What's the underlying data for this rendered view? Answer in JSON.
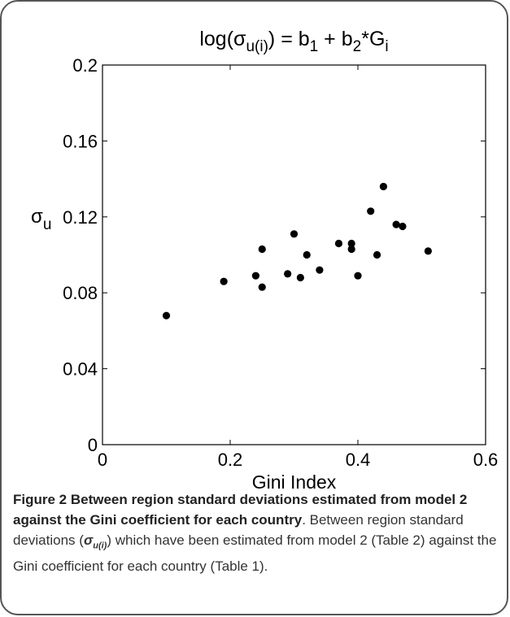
{
  "chart_data": {
    "type": "scatter",
    "title": "log(σu(i)) = b1 + b2*Gi",
    "xlabel": "Gini Index",
    "ylabel": "σu",
    "xlim": [
      0,
      0.6
    ],
    "ylim": [
      0,
      0.2
    ],
    "xticks": [
      "0",
      "0.2",
      "0.4",
      "0.6"
    ],
    "yticks": [
      "0",
      "0.04",
      "0.08",
      "0.12",
      "0.16",
      "0.2"
    ],
    "grid": false,
    "points": [
      {
        "x": 0.1,
        "y": 0.068
      },
      {
        "x": 0.19,
        "y": 0.086
      },
      {
        "x": 0.24,
        "y": 0.089
      },
      {
        "x": 0.25,
        "y": 0.103
      },
      {
        "x": 0.25,
        "y": 0.083
      },
      {
        "x": 0.29,
        "y": 0.09
      },
      {
        "x": 0.3,
        "y": 0.111
      },
      {
        "x": 0.31,
        "y": 0.088
      },
      {
        "x": 0.32,
        "y": 0.1
      },
      {
        "x": 0.34,
        "y": 0.092
      },
      {
        "x": 0.37,
        "y": 0.106
      },
      {
        "x": 0.39,
        "y": 0.106
      },
      {
        "x": 0.39,
        "y": 0.103
      },
      {
        "x": 0.4,
        "y": 0.089
      },
      {
        "x": 0.42,
        "y": 0.123
      },
      {
        "x": 0.43,
        "y": 0.1
      },
      {
        "x": 0.44,
        "y": 0.136
      },
      {
        "x": 0.46,
        "y": 0.116
      },
      {
        "x": 0.47,
        "y": 0.115
      },
      {
        "x": 0.51,
        "y": 0.102
      }
    ]
  },
  "caption": {
    "label": "Figure 2",
    "title": "Between region standard deviations estimated from model 2 against the Gini coefficient for each country",
    "text_before_symbol": ". Between region standard deviations (",
    "symbol": "σu(i)",
    "text_after_symbol": ") which have been estimated from model 2 (Table 2) against the Gini coefficient for each country (Table 1)."
  }
}
